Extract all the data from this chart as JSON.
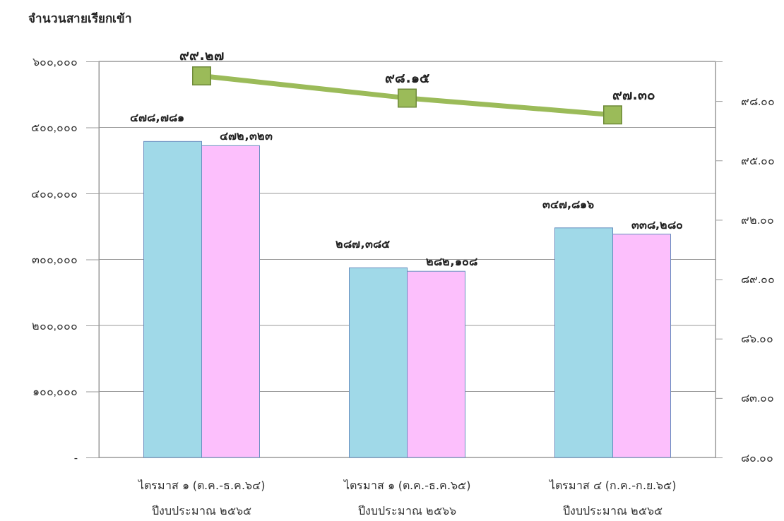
{
  "chart_data": {
    "type": "bar",
    "title": "จำนวนสายเรียกเข้า",
    "categories": [
      "ไตรมาส ๑  (ต.ค.-ธ.ค.๖๔)\nปีงบประมาณ ๒๕๖๕",
      "ไตรมาส ๑  (ต.ค.-ธ.ค.๖๕)\nปีงบประมาณ ๒๕๖๖",
      "ไตรมาส ๔  (ก.ค.-ก.ย.๖๕)\nปีงบประมาณ ๒๕๖๕"
    ],
    "series": [
      {
        "color": "#a0d9e8",
        "values": [
          478781,
          287385,
          347816
        ],
        "value_labels": [
          "๔๗๘,๗๘๑",
          "๒๘๗,๓๘๕",
          "๓๔๗,๘๑๖"
        ]
      },
      {
        "color": "#fcbffc",
        "values": [
          472323,
          282108,
          338280
        ],
        "value_labels": [
          "๔๗๒,๓๒๓",
          "๒๘๒,๑๐๘",
          "๓๓๘,๒๘๐"
        ]
      },
      {
        "type": "line",
        "axis": "y2",
        "color": "#9bbb59",
        "marker": "square",
        "values": [
          99.27,
          98.15,
          97.3
        ],
        "value_labels": [
          "๙๙.๒๗",
          "๙๘.๑๕",
          "๙๗.๓๐"
        ]
      }
    ],
    "ylim": [
      0,
      600000
    ],
    "yticks": [
      {
        "value": 0,
        "label": "-"
      },
      {
        "value": 100000,
        "label": "๑๐๐,๐๐๐"
      },
      {
        "value": 200000,
        "label": "๒๐๐,๐๐๐"
      },
      {
        "value": 300000,
        "label": "๓๐๐,๐๐๐"
      },
      {
        "value": 400000,
        "label": "๔๐๐,๐๐๐"
      },
      {
        "value": 500000,
        "label": "๕๐๐,๐๐๐"
      },
      {
        "value": 600000,
        "label": "๖๐๐,๐๐๐"
      }
    ],
    "y2lim": [
      80,
      100
    ],
    "y2ticks": [
      {
        "value": 80,
        "label": "๘๐.๐๐"
      },
      {
        "value": 83,
        "label": "๘๓.๐๐"
      },
      {
        "value": 86,
        "label": "๘๖.๐๐"
      },
      {
        "value": 89,
        "label": "๘๙.๐๐"
      },
      {
        "value": 92,
        "label": "๙๒.๐๐"
      },
      {
        "value": 95,
        "label": "๙๕.๐๐"
      },
      {
        "value": 98,
        "label": "๙๘.๐๐"
      }
    ],
    "grid": "y"
  }
}
